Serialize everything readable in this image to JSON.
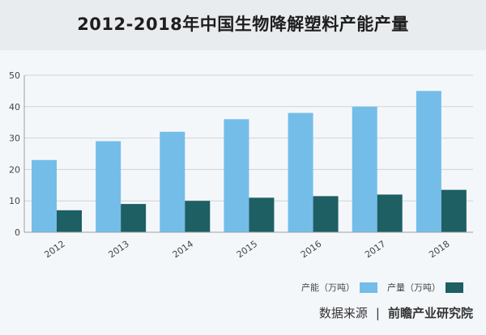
{
  "title": "2012-2018年中国生物降解塑料产能产量",
  "chart_data": {
    "type": "bar",
    "title": "2012-2018年中国生物降解塑料产能产量",
    "categories": [
      "2012",
      "2013",
      "2014",
      "2015",
      "2016",
      "2017",
      "2018"
    ],
    "series": [
      {
        "name": "产能（万吨）",
        "values": [
          23,
          29,
          32,
          36,
          38,
          40,
          45
        ],
        "color": "#74bde9"
      },
      {
        "name": "产量（万吨）",
        "values": [
          7,
          9,
          10,
          11,
          11.5,
          12,
          13.5
        ],
        "color": "#1e5f63"
      }
    ],
    "ylim": [
      0,
      50
    ],
    "yticks": [
      0,
      10,
      20,
      30,
      40,
      50
    ],
    "xlabel": "",
    "ylabel": "",
    "grid": true,
    "legend_position": "bottom-right"
  },
  "source": {
    "label": "数据来源",
    "separator": "|",
    "org": "前瞻产业研究院"
  }
}
